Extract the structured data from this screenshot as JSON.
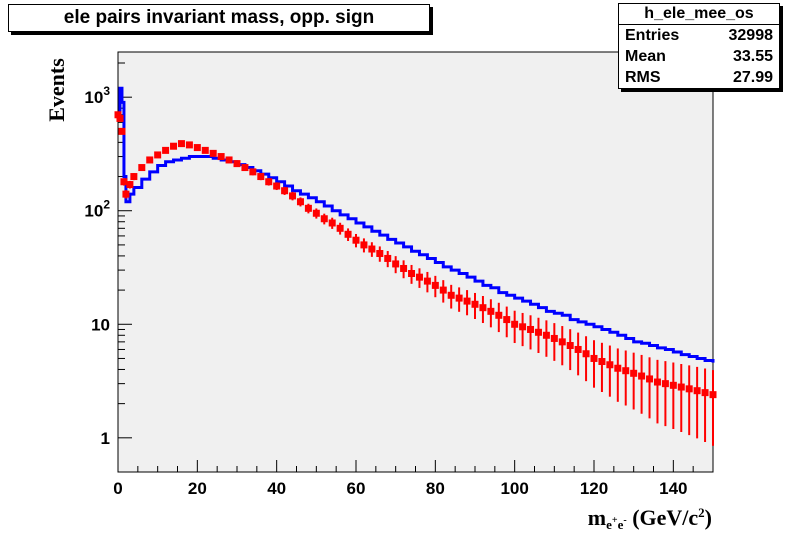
{
  "chart_data": {
    "type": "line",
    "title": "ele pairs invariant mass, opp. sign",
    "xlabel": "m_{e+e-} (GeV/c^2)",
    "ylabel": "Events",
    "xlim": [
      0,
      150
    ],
    "ylim": [
      0.5,
      2500
    ],
    "yscale": "log",
    "grid": false,
    "x_tick_labels": [
      "0",
      "20",
      "40",
      "60",
      "80",
      "100",
      "120",
      "140"
    ],
    "y_tick_labels": [
      "1",
      "10",
      "10^2",
      "10^3"
    ],
    "stats": {
      "name": "h_ele_mee_os",
      "rows": [
        {
          "label": "Entries",
          "value": "32998"
        },
        {
          "label": "Mean",
          "value": "33.55"
        },
        {
          "label": "RMS",
          "value": "27.99"
        }
      ]
    },
    "series": [
      {
        "style": "histogram-line",
        "color": "#0000ff",
        "x": [
          0,
          0.5,
          1,
          1.5,
          2,
          3,
          4,
          6,
          8,
          10,
          12,
          14,
          16,
          18,
          20,
          22,
          24,
          26,
          28,
          30,
          32,
          34,
          36,
          38,
          40,
          42,
          44,
          46,
          48,
          50,
          52,
          54,
          56,
          58,
          60,
          62,
          64,
          66,
          68,
          70,
          72,
          74,
          76,
          78,
          80,
          82,
          84,
          86,
          88,
          90,
          92,
          94,
          96,
          98,
          100,
          102,
          104,
          106,
          108,
          110,
          112,
          114,
          116,
          118,
          120,
          122,
          124,
          126,
          128,
          130,
          132,
          134,
          136,
          138,
          140,
          142,
          144,
          146,
          148,
          150
        ],
        "y": [
          700,
          1200,
          900,
          200,
          120,
          140,
          160,
          190,
          220,
          250,
          270,
          280,
          290,
          300,
          300,
          300,
          290,
          280,
          270,
          255,
          240,
          225,
          210,
          195,
          180,
          165,
          150,
          140,
          130,
          120,
          110,
          100,
          92,
          85,
          78,
          72,
          66,
          61,
          56,
          52,
          48,
          44,
          41,
          38,
          35,
          32,
          30,
          28,
          26,
          24,
          22,
          21,
          19,
          18,
          17,
          16,
          15,
          14,
          13,
          12.5,
          12,
          11,
          10.5,
          10,
          9.5,
          9,
          8.5,
          8,
          7.5,
          7,
          6.8,
          6.5,
          6.2,
          6,
          5.7,
          5.4,
          5.2,
          5,
          4.8,
          4.6
        ]
      },
      {
        "style": "markers-errorbars",
        "color": "#ff0000",
        "x": [
          0,
          0.5,
          1,
          1.5,
          2,
          3,
          4,
          6,
          8,
          10,
          12,
          14,
          16,
          18,
          20,
          22,
          24,
          26,
          28,
          30,
          32,
          34,
          36,
          38,
          40,
          42,
          44,
          46,
          48,
          50,
          52,
          54,
          56,
          58,
          60,
          62,
          64,
          66,
          68,
          70,
          72,
          74,
          76,
          78,
          80,
          82,
          84,
          86,
          88,
          90,
          92,
          94,
          96,
          98,
          100,
          102,
          104,
          106,
          108,
          110,
          112,
          114,
          116,
          118,
          120,
          122,
          124,
          126,
          128,
          130,
          132,
          134,
          136,
          138,
          140,
          142,
          144,
          146,
          148,
          150
        ],
        "y": [
          700,
          650,
          500,
          180,
          140,
          170,
          200,
          240,
          280,
          310,
          340,
          370,
          390,
          380,
          360,
          340,
          320,
          300,
          280,
          260,
          240,
          220,
          200,
          180,
          165,
          150,
          135,
          120,
          105,
          95,
          85,
          78,
          70,
          62,
          55,
          50,
          46,
          42,
          38,
          34,
          31,
          28,
          26,
          24,
          22,
          20,
          18,
          17,
          16,
          15,
          14,
          13,
          12,
          11,
          10,
          9.5,
          9,
          8.5,
          8,
          7.5,
          7,
          6.5,
          6,
          5.5,
          5,
          4.7,
          4.4,
          4.1,
          3.9,
          3.7,
          3.5,
          3.3,
          3.1,
          3,
          2.9,
          2.8,
          2.7,
          2.6,
          2.5,
          2.4
        ]
      }
    ]
  }
}
